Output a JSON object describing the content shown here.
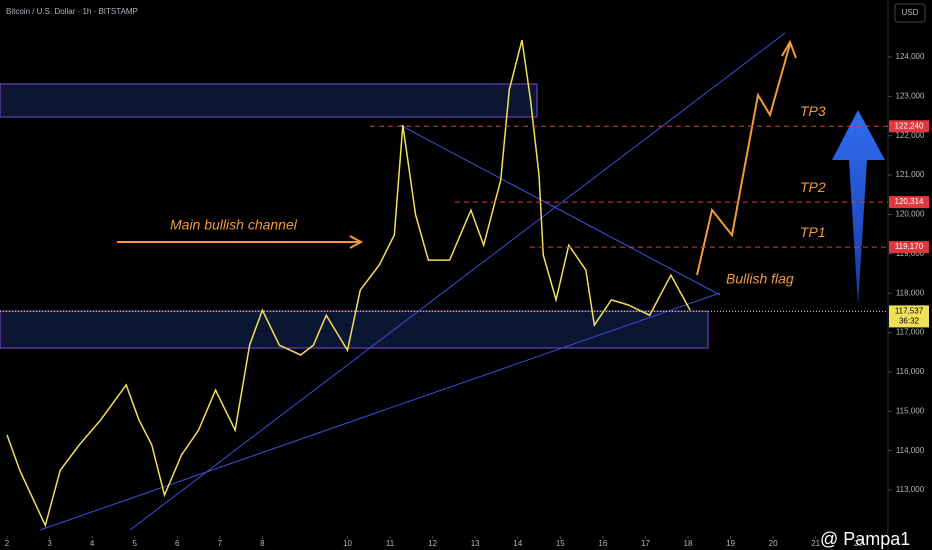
{
  "chart_data": {
    "type": "line",
    "title": "Bitcoin / U.S. Dollar · 1h · BITSTAMP",
    "currency": "USD",
    "watermark": "@ Pampa1",
    "x": [
      2.0,
      2.3,
      2.9,
      3.25,
      3.7,
      4.2,
      4.8,
      5.1,
      5.4,
      5.7,
      6.1,
      6.5,
      6.9,
      7.36,
      7.7,
      8.0,
      8.4,
      8.9,
      9.2,
      9.5,
      10.0,
      10.3,
      10.75,
      11.1,
      11.3,
      11.6,
      11.9,
      12.4,
      12.9,
      13.2,
      13.6,
      13.8,
      14.1,
      14.3,
      14.5,
      14.6,
      14.9,
      15.2,
      15.6,
      15.8,
      16.2,
      16.6,
      17.1,
      17.6,
      18.05
    ],
    "series": [
      {
        "name": "BTCUSD",
        "color": "#f0e05a",
        "values": [
          114400,
          113500,
          112100,
          113500,
          114150,
          114780,
          115670,
          114780,
          114150,
          112870,
          113890,
          114520,
          115540,
          114520,
          116680,
          117570,
          116680,
          116430,
          116680,
          117440,
          116550,
          118080,
          118720,
          119480,
          122270,
          119990,
          118840,
          118840,
          120110,
          119220,
          120870,
          123160,
          124430,
          122910,
          121000,
          118970,
          117830,
          119220,
          118590,
          117190,
          117830,
          117700,
          117440,
          118460,
          117570
        ]
      }
    ],
    "xlim": [
      1.835,
      22.7
    ],
    "ylim": [
      111476,
      125448
    ],
    "xticks": [
      2,
      3,
      4,
      5,
      6,
      7,
      8,
      10,
      11,
      12,
      13,
      14,
      15,
      16,
      17,
      18,
      19,
      20,
      21,
      22
    ],
    "yticks": [
      {
        "value": 113000,
        "label": "113,000"
      },
      {
        "value": 114000,
        "label": "114,000"
      },
      {
        "value": 115000,
        "label": "115,000"
      },
      {
        "value": 116000,
        "label": "116,000"
      },
      {
        "value": 117000,
        "label": "117,000"
      },
      {
        "value": 118000,
        "label": "118,000"
      },
      {
        "value": 119000,
        "label": "119,000"
      },
      {
        "value": 120000,
        "label": "120,000"
      },
      {
        "value": 121000,
        "label": "121,000"
      },
      {
        "value": 122000,
        "label": "122,000"
      },
      {
        "value": 123000,
        "label": "123,000"
      },
      {
        "value": 124000,
        "label": "124,000"
      }
    ],
    "levels": [
      {
        "value": 122240,
        "label": "122,240",
        "name": "TP3"
      },
      {
        "value": 120314,
        "label": "120,314",
        "name": "TP2"
      },
      {
        "value": 119170,
        "label": "119,170",
        "name": "TP1"
      }
    ],
    "last_price": {
      "value": 117537,
      "label": "117,537",
      "countdown": "36:32"
    },
    "annotations": [
      "Main bullish channel",
      "Bullish flag"
    ]
  }
}
